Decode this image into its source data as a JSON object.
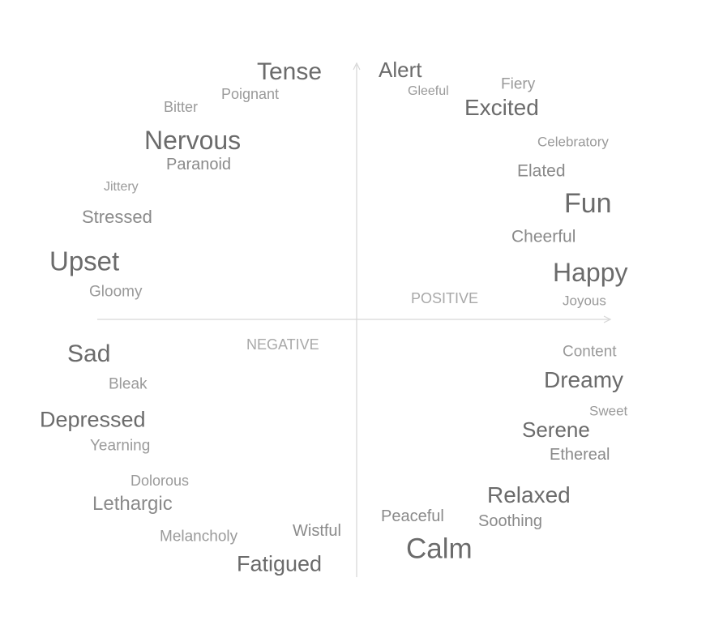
{
  "colors": {
    "axis": "#d6d6d6",
    "word_dark": "#6b6b6b",
    "word_mid": "#8a8a8a",
    "word_light": "#9a9a9a",
    "axis_label": "#a8a8a8"
  },
  "axis_labels": {
    "positive": "POSITIVE",
    "negative": "NEGATIVE"
  },
  "words": [
    {
      "id": "tense",
      "text": "Tense"
    },
    {
      "id": "poignant",
      "text": "Poignant"
    },
    {
      "id": "bitter",
      "text": "Bitter"
    },
    {
      "id": "nervous",
      "text": "Nervous"
    },
    {
      "id": "paranoid",
      "text": "Paranoid"
    },
    {
      "id": "jittery",
      "text": "Jittery"
    },
    {
      "id": "stressed",
      "text": "Stressed"
    },
    {
      "id": "upset",
      "text": "Upset"
    },
    {
      "id": "gloomy",
      "text": "Gloomy"
    },
    {
      "id": "alert",
      "text": "Alert"
    },
    {
      "id": "gleeful",
      "text": "Gleeful"
    },
    {
      "id": "fiery",
      "text": "Fiery"
    },
    {
      "id": "excited",
      "text": "Excited"
    },
    {
      "id": "celebratory",
      "text": "Celebratory"
    },
    {
      "id": "elated",
      "text": "Elated"
    },
    {
      "id": "fun",
      "text": "Fun"
    },
    {
      "id": "cheerful",
      "text": "Cheerful"
    },
    {
      "id": "happy",
      "text": "Happy"
    },
    {
      "id": "joyous",
      "text": "Joyous"
    },
    {
      "id": "sad",
      "text": "Sad"
    },
    {
      "id": "bleak",
      "text": "Bleak"
    },
    {
      "id": "depressed",
      "text": "Depressed"
    },
    {
      "id": "yearning",
      "text": "Yearning"
    },
    {
      "id": "dolorous",
      "text": "Dolorous"
    },
    {
      "id": "lethargic",
      "text": "Lethargic"
    },
    {
      "id": "melancholy",
      "text": "Melancholy"
    },
    {
      "id": "wistful",
      "text": "Wistful"
    },
    {
      "id": "fatigued",
      "text": "Fatigued"
    },
    {
      "id": "content",
      "text": "Content"
    },
    {
      "id": "dreamy",
      "text": "Dreamy"
    },
    {
      "id": "sweet",
      "text": "Sweet"
    },
    {
      "id": "serene",
      "text": "Serene"
    },
    {
      "id": "ethereal",
      "text": "Ethereal"
    },
    {
      "id": "relaxed",
      "text": "Relaxed"
    },
    {
      "id": "peaceful",
      "text": "Peaceful"
    },
    {
      "id": "soothing",
      "text": "Soothing"
    },
    {
      "id": "calm",
      "text": "Calm"
    }
  ]
}
